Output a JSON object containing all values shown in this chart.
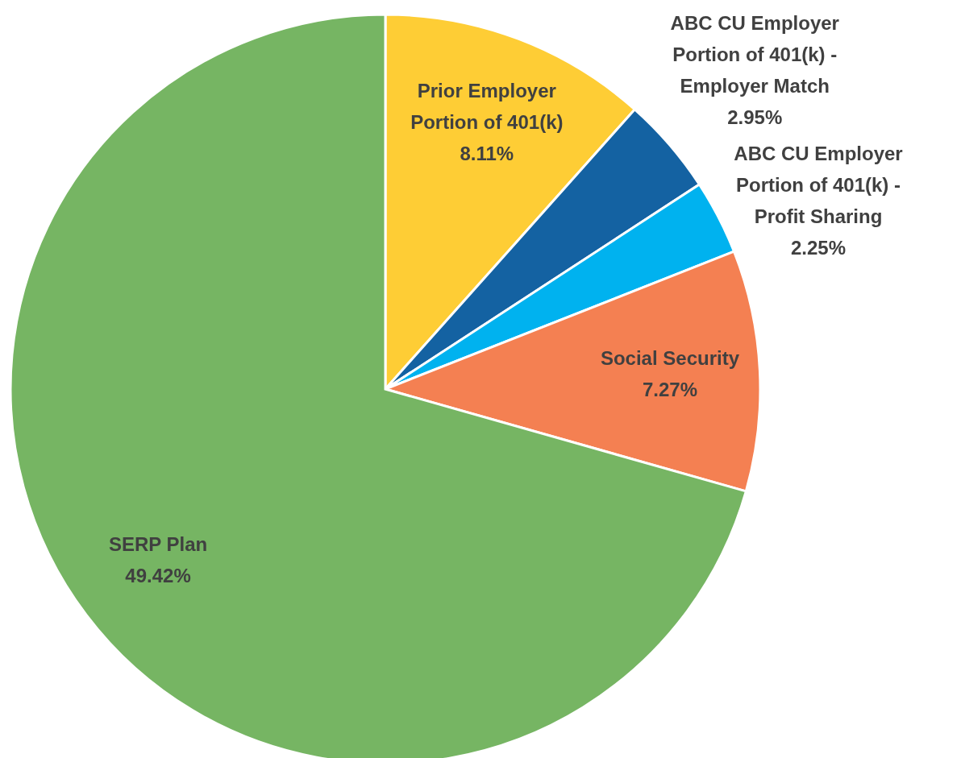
{
  "chart_data": {
    "type": "pie",
    "categories": [
      "Prior Employer Portion of 401(k)",
      "ABC CU Employer Portion of 401(k) - Employer Match",
      "ABC CU Employer Portion of 401(k) - Profit Sharing",
      "Social Security",
      "SERP Plan"
    ],
    "values": [
      8.11,
      2.95,
      2.25,
      7.27,
      49.42
    ],
    "value_labels": [
      "8.11%",
      "2.95%",
      "2.25%",
      "7.27%",
      "49.42%"
    ],
    "colors": [
      "#fecd35",
      "#1462a2",
      "#00b2ef",
      "#f48052",
      "#76b563"
    ]
  }
}
